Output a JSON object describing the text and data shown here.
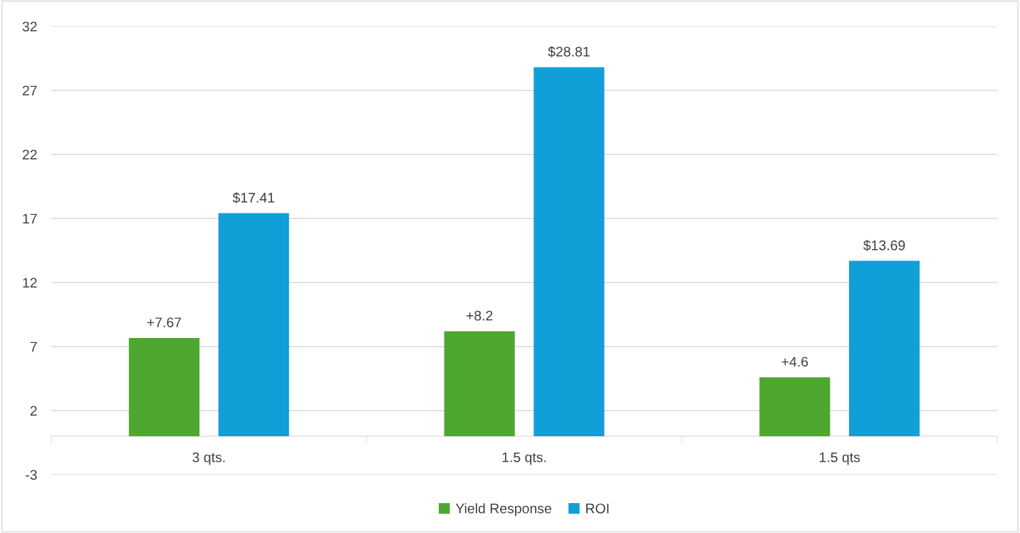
{
  "chart_data": {
    "type": "bar",
    "categories": [
      "3 qts.",
      "1.5 qts.",
      "1.5 qts"
    ],
    "series": [
      {
        "name": "Yield Response",
        "color": "#4ea72e",
        "values": [
          7.67,
          8.2,
          4.6
        ],
        "value_labels": [
          "+7.67",
          "+8.2",
          "+4.6"
        ]
      },
      {
        "name": "ROI",
        "color": "#119fd7",
        "values": [
          17.41,
          28.81,
          13.69
        ],
        "value_labels": [
          "$17.41",
          "$28.81",
          "$13.69"
        ]
      }
    ],
    "ylim": [
      -3,
      32
    ],
    "yticks": [
      -3,
      2,
      7,
      12,
      17,
      22,
      27,
      32
    ],
    "grid": "y",
    "legend": "bottom"
  }
}
